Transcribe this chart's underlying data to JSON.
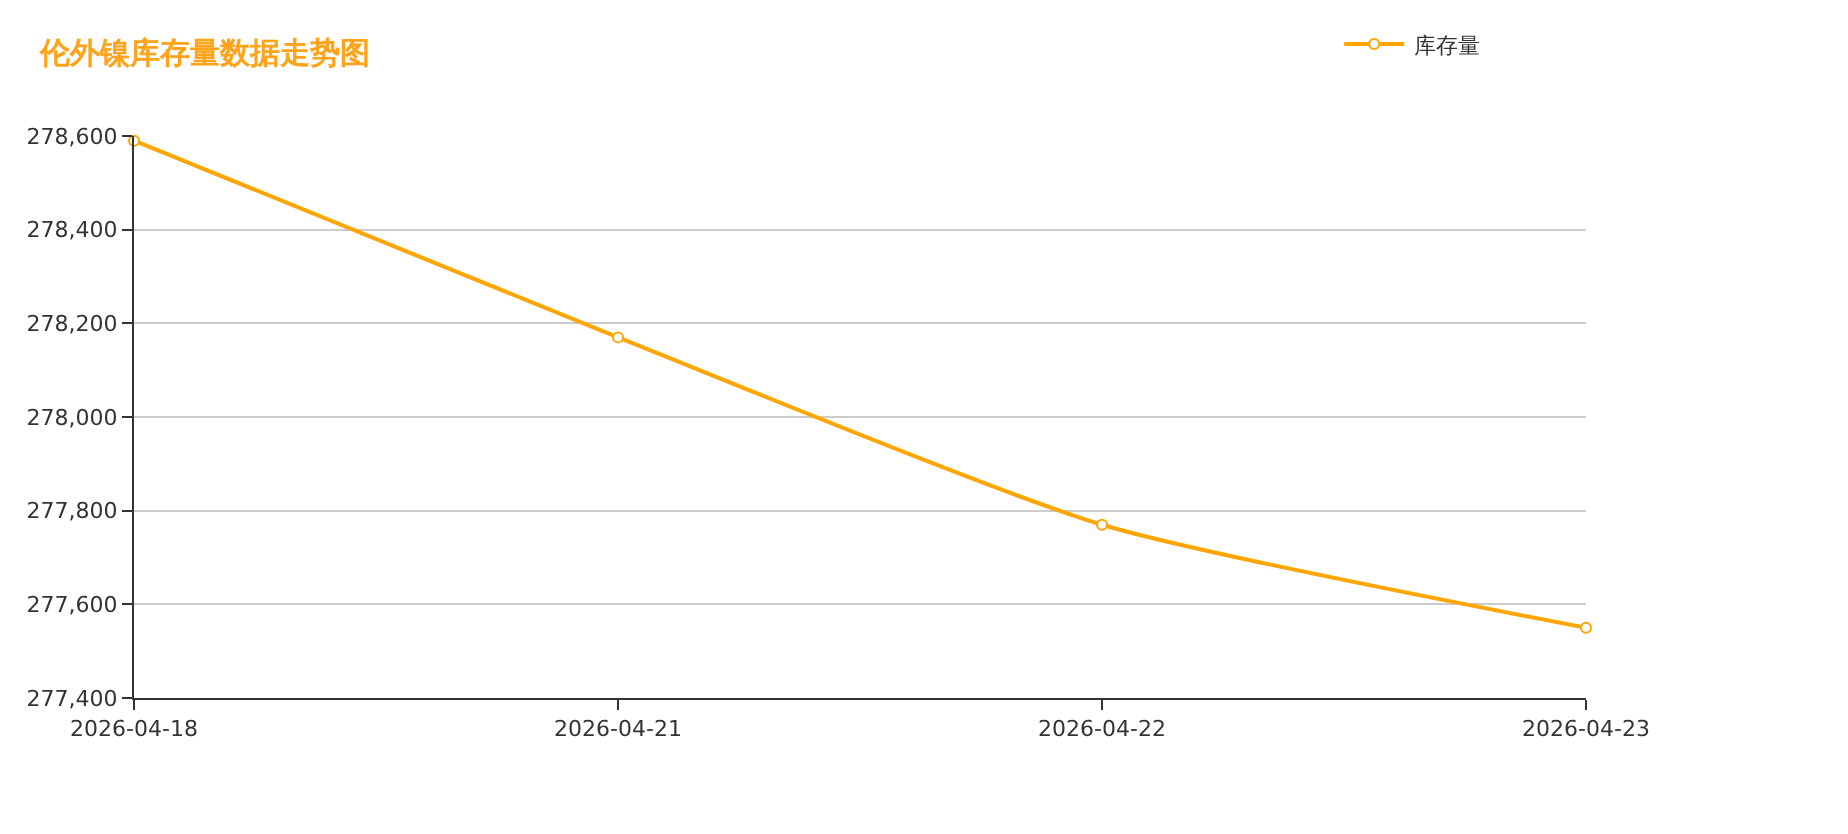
{
  "chart_data": {
    "type": "line",
    "title": "伦外镍库存量数据走势图",
    "categories": [
      "2026-04-18",
      "2026-04-21",
      "2026-04-22",
      "2026-04-23"
    ],
    "series": [
      {
        "name": "库存量",
        "color": "#ffa500",
        "values": [
          278590,
          278170,
          277770,
          277550
        ]
      }
    ],
    "ylim": [
      277400,
      278600
    ],
    "yticks": [
      {
        "value": 277400,
        "label": "277,400"
      },
      {
        "value": 277600,
        "label": "277,600"
      },
      {
        "value": 277800,
        "label": "277,800"
      },
      {
        "value": 278000,
        "label": "278,000"
      },
      {
        "value": 278200,
        "label": "278,200"
      },
      {
        "value": 278400,
        "label": "278,400"
      },
      {
        "value": 278600,
        "label": "278,600"
      }
    ],
    "grid": "y",
    "legend": "top right",
    "marker": "circle",
    "line_style": "solid"
  }
}
